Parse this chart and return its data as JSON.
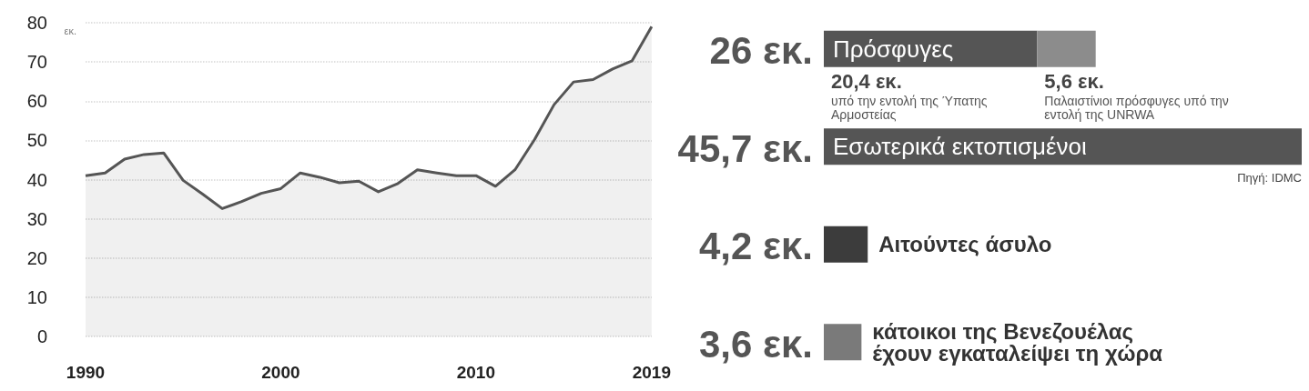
{
  "chart_data": [
    {
      "type": "area",
      "ylabel": "εκ.",
      "x": [
        1990,
        1991,
        1992,
        1993,
        1994,
        1995,
        1996,
        1997,
        1998,
        1999,
        2000,
        2001,
        2002,
        2003,
        2004,
        2005,
        2006,
        2007,
        2008,
        2009,
        2010,
        2011,
        2012,
        2013,
        2014,
        2015,
        2016,
        2017,
        2018,
        2019
      ],
      "values": [
        41.0,
        41.7,
        45.2,
        46.4,
        46.8,
        39.8,
        36.3,
        32.6,
        34.4,
        36.5,
        37.7,
        41.7,
        40.6,
        39.2,
        39.6,
        36.9,
        39.0,
        42.5,
        41.7,
        41.0,
        41.0,
        38.3,
        42.5,
        50.2,
        59.1,
        64.9,
        65.5,
        68.2,
        70.3,
        79.0
      ],
      "color": "#555555",
      "xlim": [
        1990,
        2019
      ],
      "xticks": [
        1990,
        2000,
        2010,
        2019
      ],
      "ylim": [
        0,
        80
      ],
      "yticks": [
        0,
        10,
        20,
        30,
        40,
        50,
        60,
        70,
        80
      ],
      "grid": "y",
      "marker": "none"
    },
    {
      "type": "bar",
      "orientation": "horizontal",
      "stacked": true,
      "categories": [
        "Πρόσφυγες",
        "Εσωτερικά εκτοπισμένοι",
        "Αιτούντες άσυλο",
        "κάτοικοι της Βενεζουέλας έχουν εγκαταλείψει τη χώρα"
      ],
      "series": [
        {
          "colors": [
            "#555555",
            "#555555",
            "#3c3c3c",
            "#7a7a7a"
          ],
          "values": [
            20.4,
            45.7,
            4.2,
            3.6
          ],
          "value_labels": [
            "20,4 εκ.",
            null,
            null,
            null
          ]
        },
        {
          "color": "#8c8c8c",
          "values": [
            5.6,
            null,
            null,
            null
          ],
          "value_labels": [
            "5,6 εκ.",
            null,
            null,
            null
          ]
        }
      ],
      "totals": [
        "26 εκ.",
        "45,7 εκ.",
        "4,2 εκ.",
        "3,6 εκ."
      ],
      "annotations": [
        "υπό την εντολή της Ύπατης Αρμοστείας",
        "Παλαιστίνιοι πρόσφυγες υπό την εντολή της UNRWA",
        "Πηγή: IDMC"
      ]
    }
  ]
}
